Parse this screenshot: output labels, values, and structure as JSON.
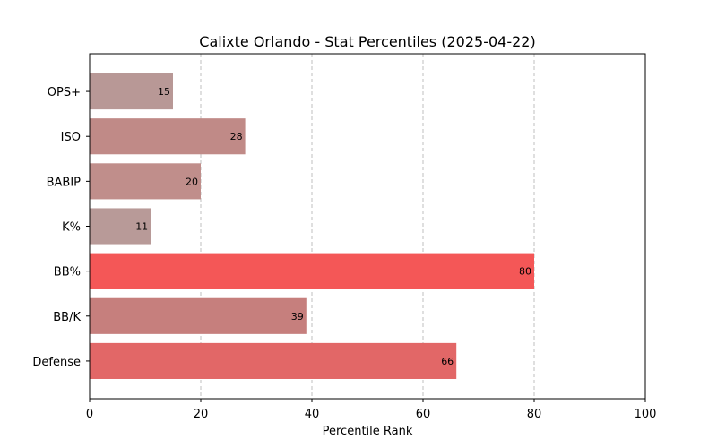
{
  "chart_data": {
    "type": "bar",
    "orientation": "horizontal",
    "title": "Calixte Orlando - Stat Percentiles (2025-04-22)",
    "xlabel": "Percentile Rank",
    "ylabel": "",
    "xlim": [
      0,
      100
    ],
    "x_ticks": [
      0,
      20,
      40,
      60,
      80,
      100
    ],
    "grid": "x-dashed",
    "categories": [
      "OPS+",
      "ISO",
      "BABIP",
      "K%",
      "BB%",
      "BB/K",
      "Defense"
    ],
    "values": [
      15,
      28,
      20,
      11,
      80,
      39,
      66
    ],
    "colors": [
      "#b89896",
      "#c08a87",
      "#c08e8b",
      "#b89a98",
      "#f45757",
      "#c67f7d",
      "#e26767"
    ]
  }
}
